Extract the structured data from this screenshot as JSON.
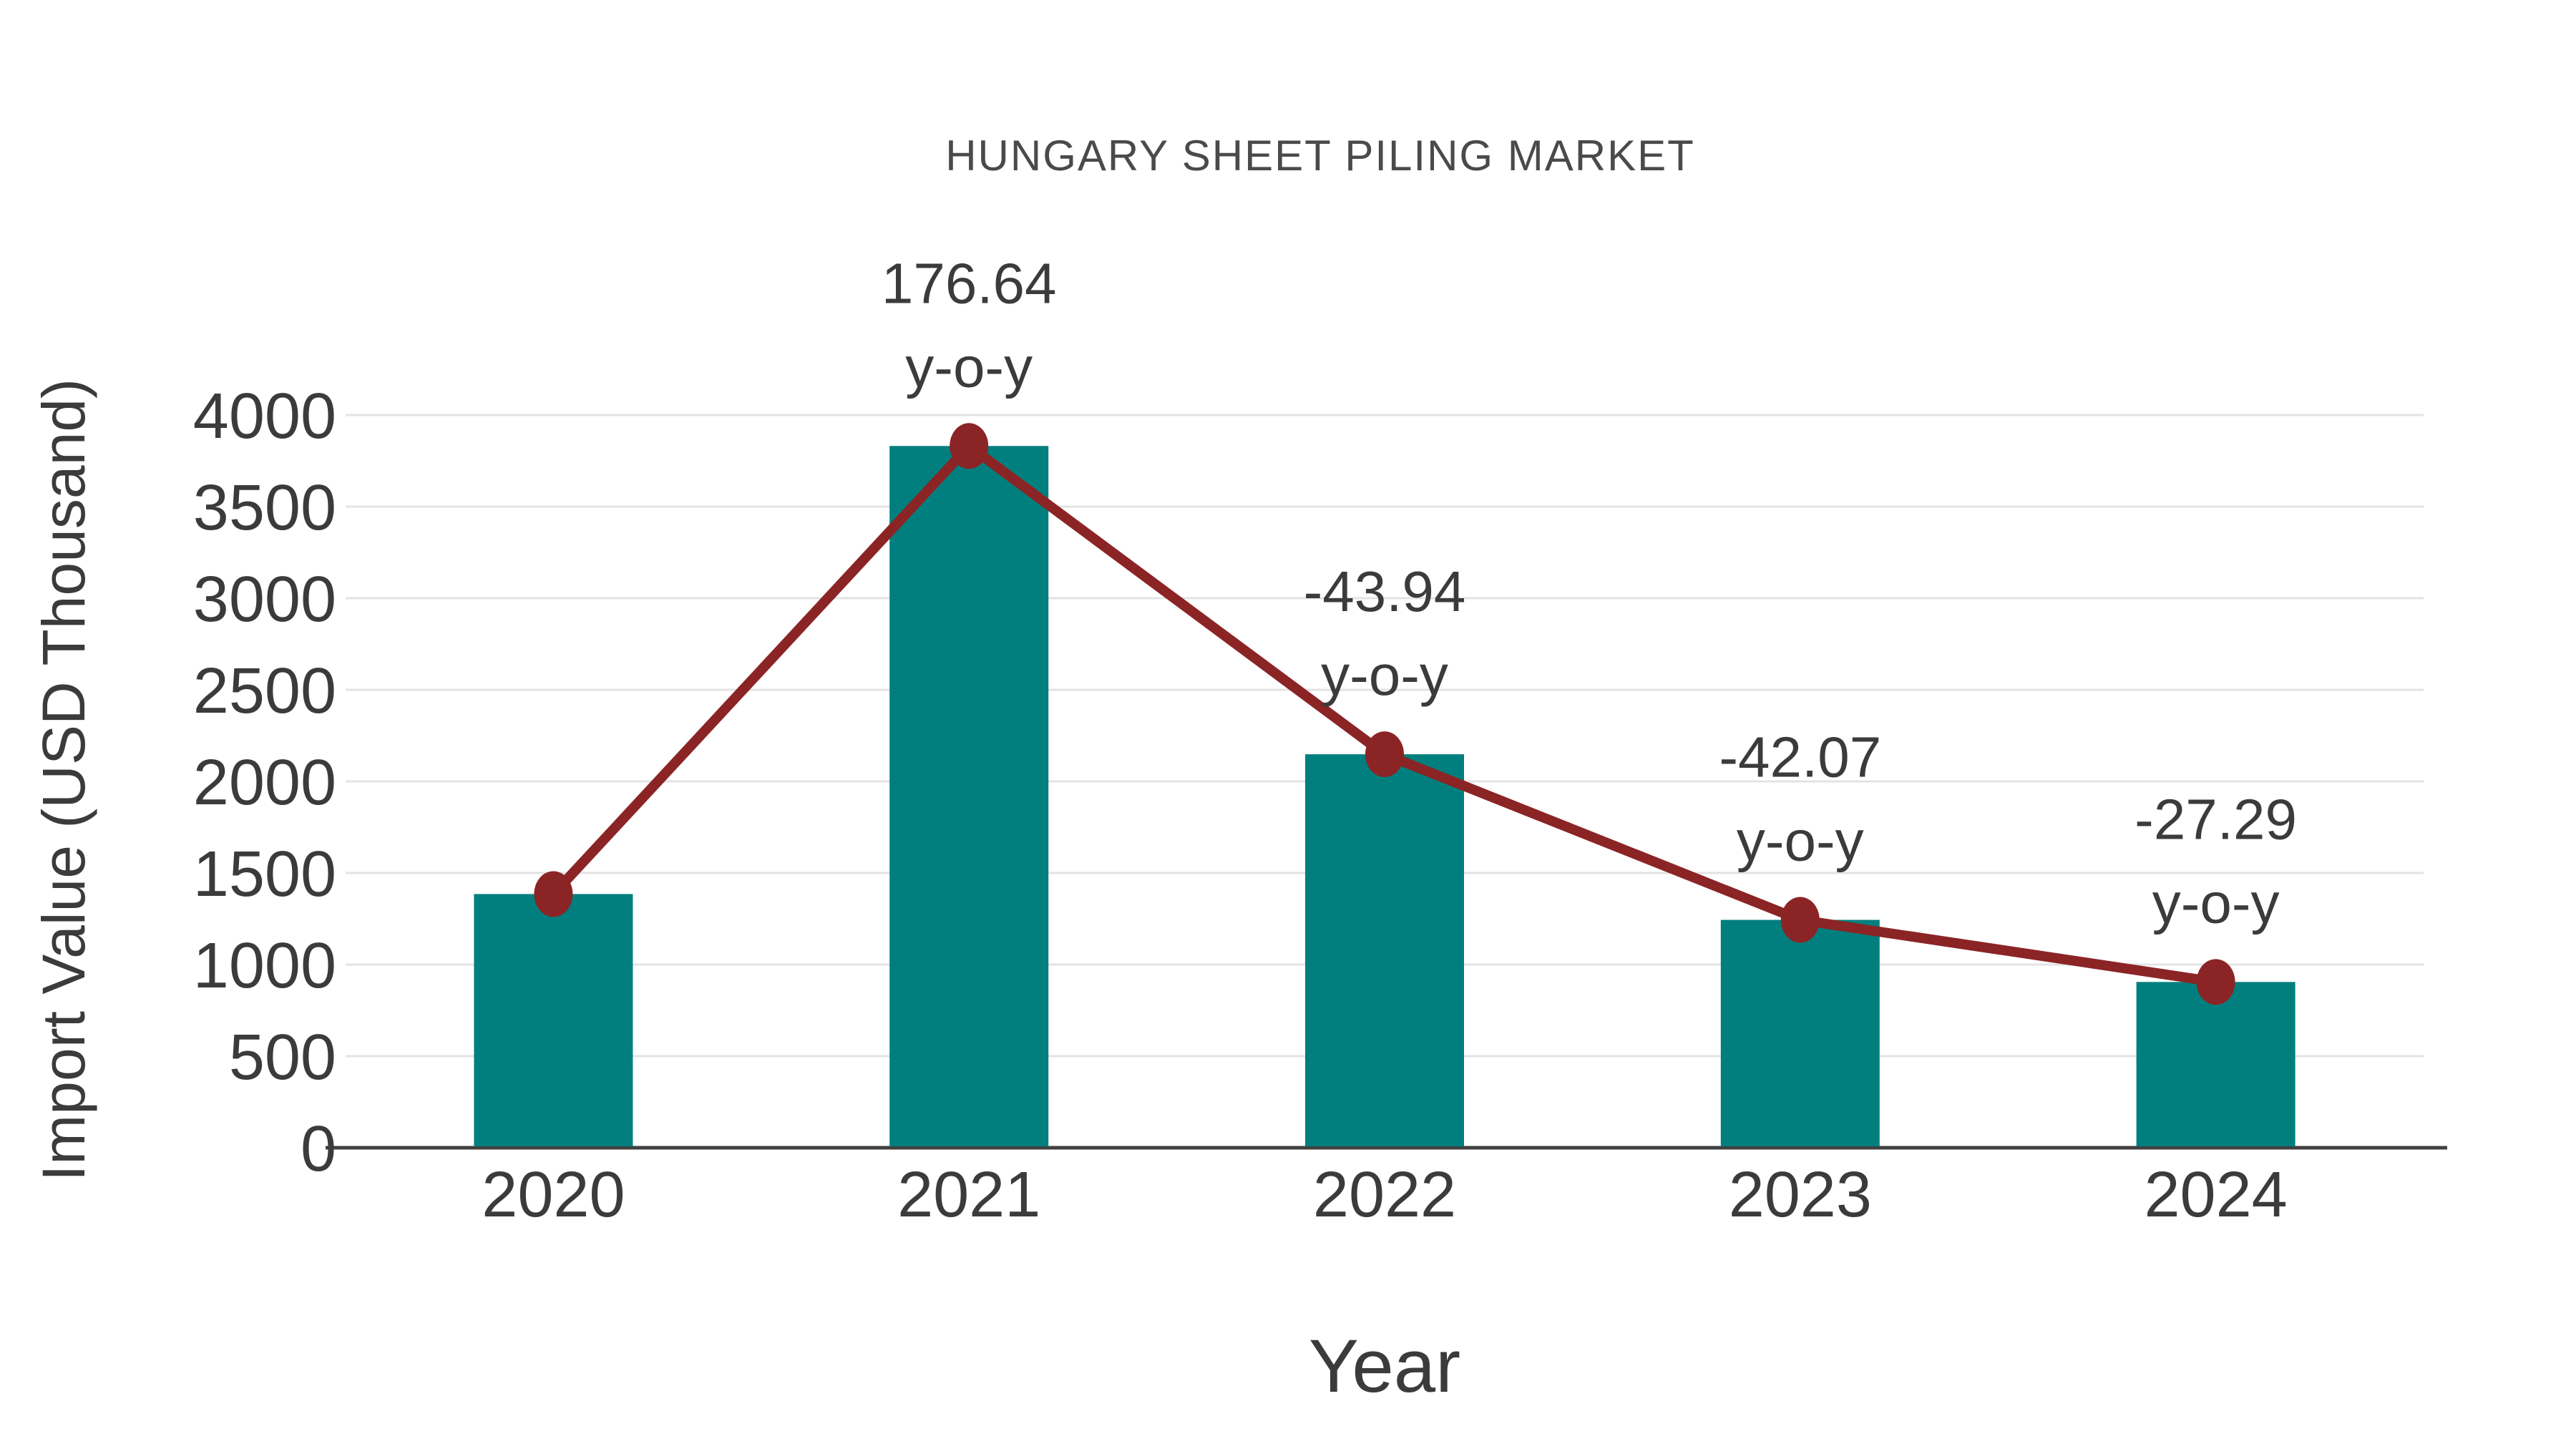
{
  "chart_data": {
    "type": "bar",
    "title": "HUNGARY SHEET PILING MARKET",
    "xlabel": "Year",
    "ylabel": "Import Value (USD Thousand)",
    "categories": [
      "2020",
      "2021",
      "2022",
      "2023",
      "2024"
    ],
    "series": [
      {
        "name": "import-value-bars",
        "type": "bar",
        "color": "#017f7e",
        "values": [
          1385,
          3831,
          2148,
          1244,
          905
        ]
      },
      {
        "name": "import-value-trend-line",
        "type": "line",
        "color": "#8b2425",
        "marker": "circle",
        "values": [
          1385,
          3831,
          2148,
          1244,
          905
        ]
      }
    ],
    "annotations": [
      {
        "category": "2021",
        "lines": [
          "176.64",
          "y-o-y"
        ]
      },
      {
        "category": "2022",
        "lines": [
          "-43.94",
          "y-o-y"
        ]
      },
      {
        "category": "2023",
        "lines": [
          "-42.07",
          "y-o-y"
        ]
      },
      {
        "category": "2024",
        "lines": [
          "-27.29",
          "y-o-y"
        ]
      }
    ],
    "yticks": [
      0,
      500,
      1000,
      1500,
      2000,
      2500,
      3000,
      3500,
      4000
    ],
    "ylim": [
      0,
      4000
    ],
    "grid": true,
    "legend": "none",
    "colors": {
      "bar": "#017f7e",
      "line": "#8b2425",
      "marker": "#8b2425",
      "text": "#3b3b3b",
      "grid": "#e3e3e3",
      "axis": "#404040",
      "background": "#ffffff"
    }
  }
}
